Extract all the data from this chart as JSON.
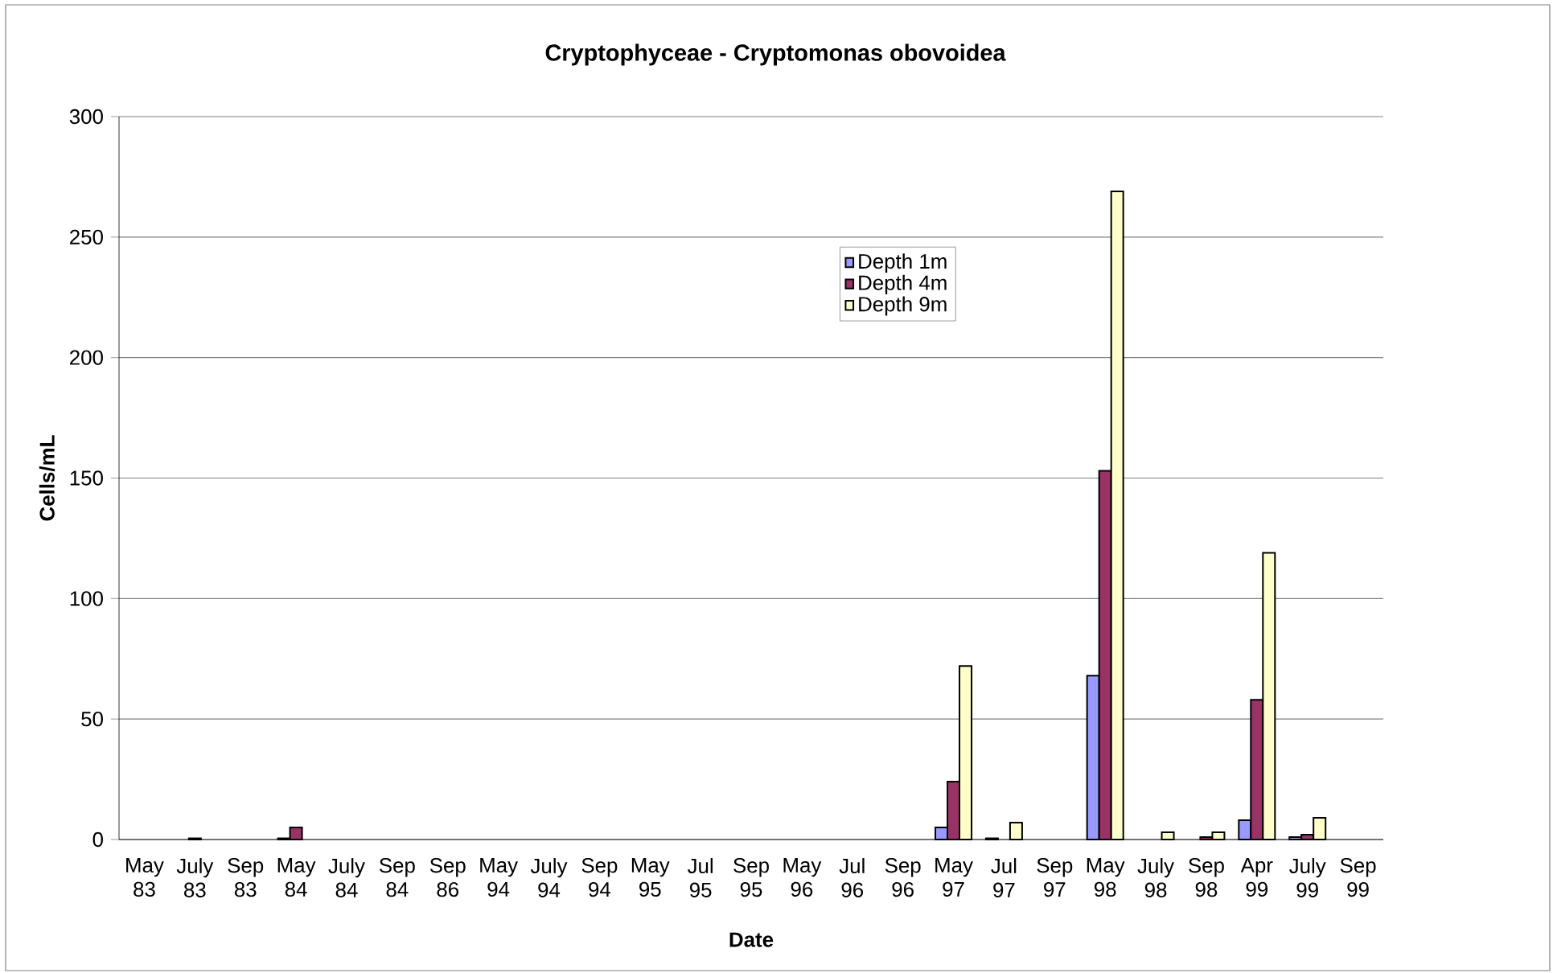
{
  "chart_data": {
    "type": "bar",
    "title": "Cryptophyceae - Cryptomonas obovoidea",
    "xlabel": "Date",
    "ylabel": "Cells/mL",
    "categories": [
      "May 83",
      "July 83",
      "Sep 83",
      "May 84",
      "July 84",
      "Sep 84",
      "Sep 86",
      "May 94",
      "July 94",
      "Sep 94",
      "May 95",
      "Jul 95",
      "Sep 95",
      "May 96",
      "Jul 96",
      "Sep 96",
      "May 97",
      "Jul 97",
      "Sep 97",
      "May 98",
      "July 98",
      "Sep 98",
      "Apr 99",
      "July 99",
      "Sep 99"
    ],
    "series": [
      {
        "name": "Depth 1m",
        "color": "#9999ff",
        "values": [
          null,
          null,
          null,
          0.5,
          null,
          null,
          null,
          null,
          null,
          null,
          null,
          null,
          null,
          null,
          null,
          null,
          5,
          0.5,
          null,
          68,
          null,
          null,
          8,
          1,
          null
        ]
      },
      {
        "name": "Depth 4m",
        "color": "#993366",
        "values": [
          null,
          0.5,
          null,
          5,
          null,
          null,
          null,
          null,
          null,
          null,
          null,
          null,
          null,
          null,
          null,
          null,
          24,
          null,
          null,
          153,
          null,
          1,
          58,
          2,
          null
        ]
      },
      {
        "name": "Depth 9m",
        "color": "#ffffcc",
        "values": [
          null,
          null,
          null,
          null,
          null,
          null,
          null,
          null,
          null,
          null,
          null,
          null,
          null,
          null,
          null,
          null,
          72,
          7,
          null,
          269,
          3,
          3,
          119,
          9,
          null
        ]
      }
    ],
    "ylim": [
      0,
      300
    ],
    "yticks": [
      0,
      50,
      100,
      150,
      200,
      250,
      300
    ],
    "grid": "y",
    "legend": "top"
  }
}
